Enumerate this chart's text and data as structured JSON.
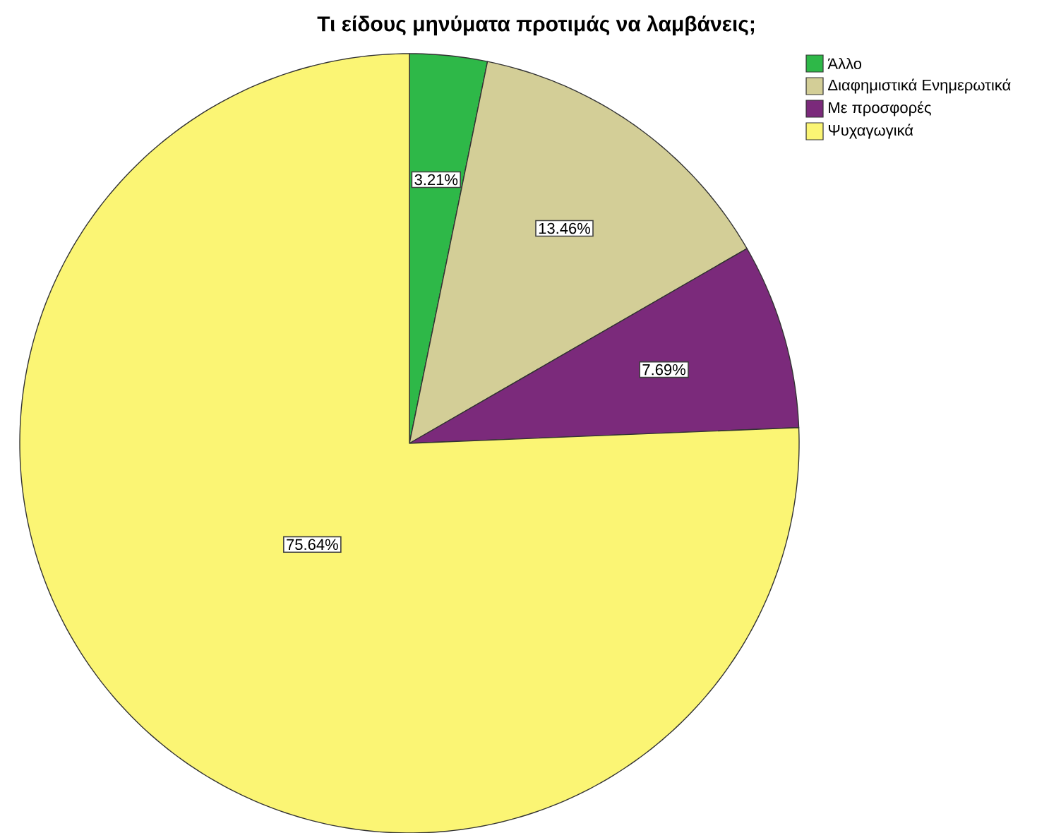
{
  "chart_data": {
    "type": "pie",
    "title": "Τι είδους μηνύματα προτιμάς να λαμβάνεις;",
    "categories": [
      "Άλλο",
      "Διαφημιστικά Ενημερωτικά",
      "Με προσφορές",
      "Ψυχαγωγικά"
    ],
    "values": [
      3.21,
      13.46,
      7.69,
      75.64
    ],
    "colors": [
      "#2eb848",
      "#d3ce97",
      "#7b2a7b",
      "#fbf574"
    ],
    "value_labels": [
      "3.21%",
      "13.46%",
      "7.69%",
      "75.64%"
    ],
    "legend": "top right"
  }
}
